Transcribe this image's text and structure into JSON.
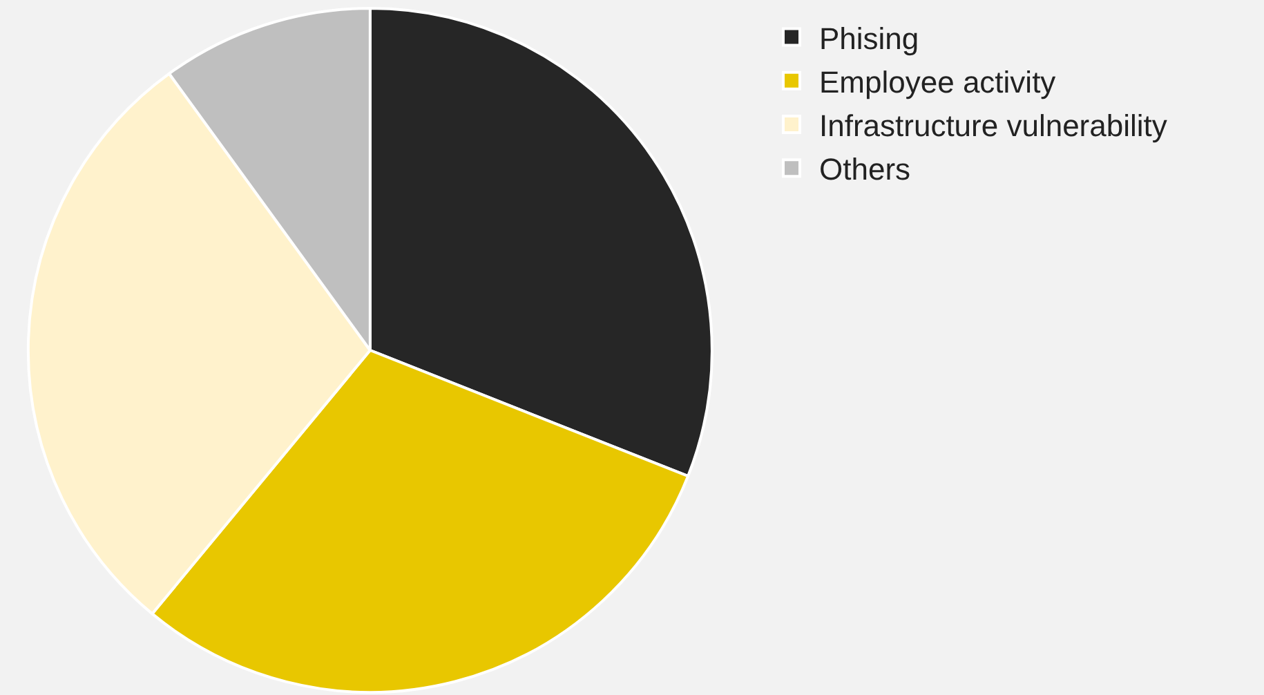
{
  "chart_data": {
    "type": "pie",
    "categories": [
      "Phising",
      "Employee activity",
      "Infrastructure vulnerability",
      "Others"
    ],
    "values": [
      31,
      30,
      29,
      10
    ],
    "colors": [
      "#262626",
      "#e8c700",
      "#fff2cc",
      "#bfbfbf"
    ],
    "legend": "right"
  }
}
